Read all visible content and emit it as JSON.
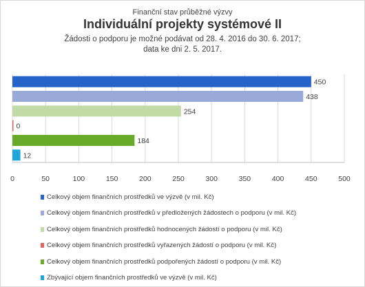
{
  "title": {
    "supertitle": "Finanční stav průběžné výzvy",
    "main": "Individuální projekty systémové II",
    "line1": "Žádosti o podporu je možné  podávat od 28. 4. 2016 do 30. 6. 2017;",
    "line2": "data ke dni 2. 5. 2017."
  },
  "chart_data": {
    "type": "bar",
    "orientation": "horizontal",
    "xlim": [
      0,
      500
    ],
    "xticks": [
      0,
      50,
      100,
      150,
      200,
      250,
      300,
      350,
      400,
      450,
      500
    ],
    "grid": true,
    "legend_position": "bottom",
    "series": [
      {
        "name": "Celkový objem finančních prostředků ve výzvě (v mil. Kč)",
        "value": 450,
        "color": "#2563c9"
      },
      {
        "name": "Celkový objem finančních prostředků v předložených žádostech o podporu (v mil. Kč)",
        "value": 438,
        "color": "#9aaad8"
      },
      {
        "name": "Celkový objem finančních prostředků hodnocených žádostí o podporu (v mil. Kč)",
        "value": 254,
        "color": "#c2dba6"
      },
      {
        "name": "Celkový objem finančních prostředků vyřazených žádostí o podporu (v mil. Kč)",
        "value": 0,
        "color": "#e06666"
      },
      {
        "name": "Celkový objem finančních prostředků podpořených žádostí o podporu (v mil. Kč)",
        "value": 184,
        "color": "#6aaa2a"
      },
      {
        "name": "Zbývající objem finančních prostředků ve výzvě (v mil. Kč)",
        "value": 12,
        "color": "#1fa6d6"
      }
    ]
  }
}
